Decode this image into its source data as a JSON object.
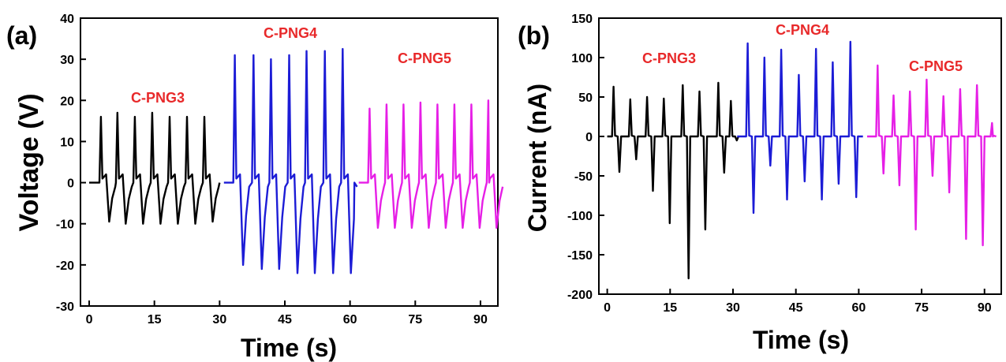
{
  "chart_data": [
    {
      "panel": "(a)",
      "type": "line",
      "xlabel": "Time (s)",
      "ylabel": "Voltage (V)",
      "xlim": [
        -2,
        94
      ],
      "ylim": [
        -30,
        40
      ],
      "xticks": [
        0,
        15,
        30,
        45,
        60,
        75,
        90
      ],
      "yticks": [
        -30,
        -20,
        -10,
        0,
        10,
        20,
        30,
        40
      ],
      "grid": false,
      "series": [
        {
          "name": "C-PNG3",
          "color": "#000000",
          "t_start": 0,
          "t_end": 30,
          "peaks": [
            {
              "t": 2.7,
              "max": 16,
              "min": -9.5
            },
            {
              "t": 6.5,
              "max": 17,
              "min": -10
            },
            {
              "t": 10.5,
              "max": 16,
              "min": -10
            },
            {
              "t": 14.5,
              "max": 17,
              "min": -10
            },
            {
              "t": 18.5,
              "max": 16,
              "min": -10
            },
            {
              "t": 22.5,
              "max": 16,
              "min": -10
            },
            {
              "t": 26.5,
              "max": 16,
              "min": -9.5
            }
          ]
        },
        {
          "name": "C-PNG4",
          "color": "#1c1cd6",
          "t_start": 31,
          "t_end": 61,
          "peaks": [
            {
              "t": 33.5,
              "max": 31,
              "min": -20
            },
            {
              "t": 37.8,
              "max": 31,
              "min": -21
            },
            {
              "t": 41.8,
              "max": 30,
              "min": -21
            },
            {
              "t": 46,
              "max": 31,
              "min": -22
            },
            {
              "t": 50,
              "max": 32,
              "min": -22
            },
            {
              "t": 54.2,
              "max": 32,
              "min": -22
            },
            {
              "t": 58.3,
              "max": 32.5,
              "min": -22
            }
          ]
        },
        {
          "name": "C-PNG5",
          "color": "#e61fe6",
          "t_start": 62,
          "t_end": 92,
          "peaks": [
            {
              "t": 64.5,
              "max": 18,
              "min": -11
            },
            {
              "t": 68.4,
              "max": 19,
              "min": -11
            },
            {
              "t": 72.3,
              "max": 19,
              "min": -11
            },
            {
              "t": 76.2,
              "max": 19.5,
              "min": -11
            },
            {
              "t": 80.1,
              "max": 19,
              "min": -11
            },
            {
              "t": 84,
              "max": 19,
              "min": -11
            },
            {
              "t": 87.9,
              "max": 19,
              "min": -11
            },
            {
              "t": 91.8,
              "max": 20,
              "min": -11
            }
          ]
        }
      ],
      "annotations": [
        "C-PNG3",
        "C-PNG4",
        "C-PNG5"
      ]
    },
    {
      "panel": "(b)",
      "type": "line",
      "xlabel": "Time (s)",
      "ylabel": "Current (nA)",
      "xlim": [
        -2,
        94
      ],
      "ylim": [
        -200,
        150
      ],
      "xticks": [
        0,
        15,
        30,
        45,
        60,
        75,
        90
      ],
      "yticks": [
        -200,
        -150,
        -100,
        -50,
        0,
        50,
        100,
        150
      ],
      "grid": false,
      "series": [
        {
          "name": "C-PNG3",
          "color": "#000000",
          "t_start": 0,
          "t_end": 30,
          "peaks": [
            {
              "t": 1.5,
              "max": 63,
              "min": -45
            },
            {
              "t": 5.5,
              "max": 47,
              "min": -29
            },
            {
              "t": 9.5,
              "max": 50,
              "min": -69
            },
            {
              "t": 13.5,
              "max": 48,
              "min": -110
            },
            {
              "t": 18,
              "max": 65,
              "min": -180
            },
            {
              "t": 22,
              "max": 57,
              "min": -118
            },
            {
              "t": 26.5,
              "max": 68,
              "min": -46
            },
            {
              "t": 29.5,
              "max": 45,
              "min": -5
            }
          ]
        },
        {
          "name": "C-PNG4",
          "color": "#1c1cd6",
          "t_start": 31,
          "t_end": 61,
          "peaks": [
            {
              "t": 33.5,
              "max": 118,
              "min": -97
            },
            {
              "t": 37.5,
              "max": 100,
              "min": -37
            },
            {
              "t": 41.5,
              "max": 110,
              "min": -80
            },
            {
              "t": 45.7,
              "max": 78,
              "min": -57
            },
            {
              "t": 49.8,
              "max": 111,
              "min": -80
            },
            {
              "t": 53.8,
              "max": 94,
              "min": -60
            },
            {
              "t": 58,
              "max": 120,
              "min": -77
            }
          ]
        },
        {
          "name": "C-PNG5",
          "color": "#e61fe6",
          "t_start": 62,
          "t_end": 92,
          "peaks": [
            {
              "t": 64.5,
              "max": 90,
              "min": -47
            },
            {
              "t": 68.3,
              "max": 52,
              "min": -62
            },
            {
              "t": 72.2,
              "max": 57,
              "min": -118
            },
            {
              "t": 76.2,
              "max": 72,
              "min": -50
            },
            {
              "t": 80.2,
              "max": 51,
              "min": -71
            },
            {
              "t": 84.2,
              "max": 60,
              "min": -130
            },
            {
              "t": 88.2,
              "max": 65,
              "min": -138
            },
            {
              "t": 91.8,
              "max": 17,
              "min": 0
            }
          ]
        }
      ],
      "annotations": [
        "C-PNG3",
        "C-PNG4",
        "C-PNG5"
      ]
    }
  ]
}
